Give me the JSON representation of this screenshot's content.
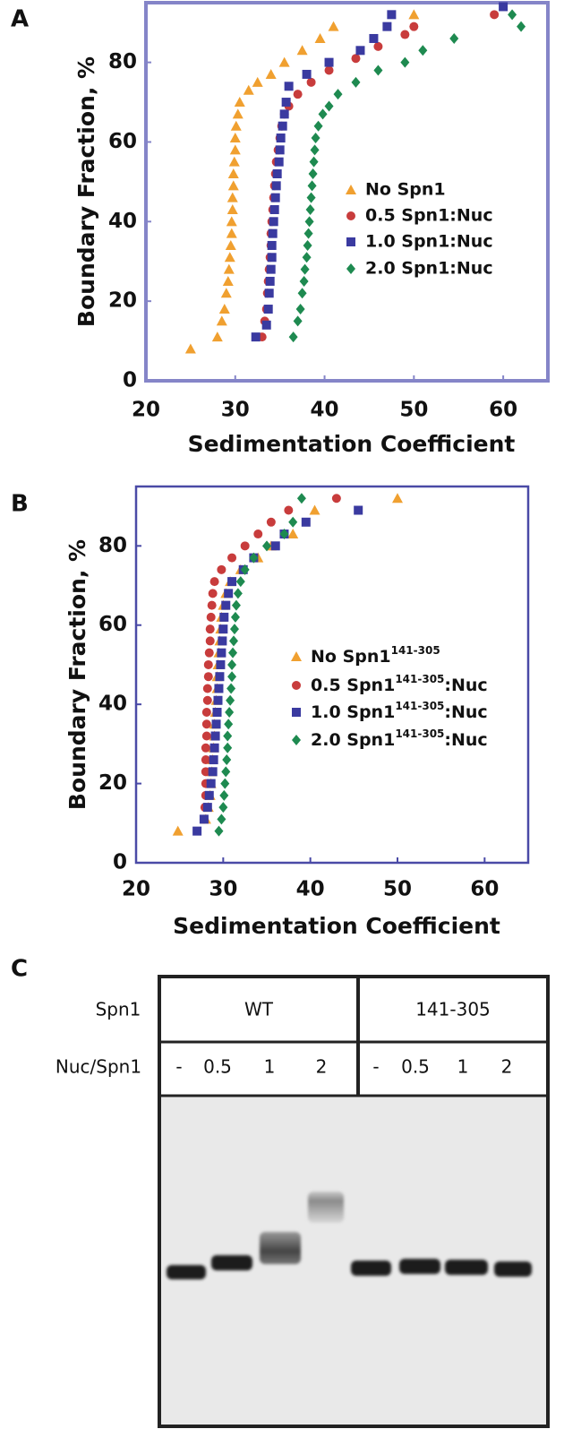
{
  "chart_data": [
    {
      "panel": "A",
      "type": "scatter",
      "xlabel": "Sedimentation Coefficient",
      "ylabel": "Boundary Fraction, %",
      "xlim": [
        20,
        65
      ],
      "ylim": [
        0,
        95
      ],
      "xticks": [
        20,
        30,
        40,
        50,
        60
      ],
      "yticks": [
        0,
        20,
        40,
        60,
        80
      ],
      "series": [
        {
          "name": "No Spn1",
          "color": "#f0a030",
          "marker": "triangle",
          "x": [
            25,
            28,
            28.5,
            28.8,
            29,
            29.2,
            29.3,
            29.4,
            29.5,
            29.6,
            29.6,
            29.7,
            29.7,
            29.8,
            29.8,
            29.9,
            30,
            30,
            30.1,
            30.3,
            30.5,
            31.5,
            32.5,
            34,
            35.5,
            37.5,
            39.5,
            41,
            50
          ],
          "values": [
            8,
            11,
            15,
            18,
            22,
            25,
            28,
            31,
            34,
            37,
            40,
            43,
            46,
            49,
            52,
            55,
            58,
            61,
            64,
            67,
            70,
            73,
            75,
            77,
            80,
            83,
            86,
            89,
            92
          ]
        },
        {
          "name": "0.5 Spn1:Nuc",
          "color": "#c83c3c",
          "marker": "circle",
          "x": [
            33,
            33.3,
            33.5,
            33.6,
            33.7,
            33.8,
            33.9,
            34,
            34,
            34.1,
            34.2,
            34.3,
            34.4,
            34.5,
            34.6,
            34.8,
            35,
            35.2,
            35.5,
            36,
            37,
            38.5,
            40.5,
            43.5,
            46,
            49,
            50,
            59
          ],
          "values": [
            11,
            15,
            18,
            22,
            25,
            28,
            31,
            34,
            37,
            40,
            43,
            46,
            49,
            52,
            55,
            58,
            61,
            64,
            67,
            69,
            72,
            75,
            78,
            81,
            84,
            87,
            89,
            92
          ]
        },
        {
          "name": "1.0 Spn1:Nuc",
          "color": "#3a3aa0",
          "marker": "square",
          "x": [
            32.3,
            33.5,
            33.7,
            33.8,
            33.9,
            34,
            34.1,
            34.1,
            34.2,
            34.3,
            34.4,
            34.5,
            34.6,
            34.7,
            34.9,
            35,
            35.1,
            35.3,
            35.5,
            35.7,
            36,
            38,
            40.5,
            44,
            45.5,
            47,
            47.5,
            60
          ],
          "values": [
            11,
            14,
            18,
            22,
            25,
            28,
            31,
            34,
            37,
            40,
            43,
            46,
            49,
            52,
            55,
            58,
            61,
            64,
            67,
            70,
            74,
            77,
            80,
            83,
            86,
            89,
            92,
            94
          ]
        },
        {
          "name": "2.0 Spn1:Nuc",
          "color": "#1e8a50",
          "marker": "diamond",
          "x": [
            36.5,
            37,
            37.3,
            37.5,
            37.7,
            37.8,
            38,
            38.1,
            38.2,
            38.3,
            38.4,
            38.5,
            38.6,
            38.7,
            38.8,
            38.9,
            39,
            39.3,
            39.8,
            40.5,
            41.5,
            43.5,
            46,
            49,
            51,
            54.5,
            61,
            62
          ],
          "values": [
            11,
            15,
            18,
            22,
            25,
            28,
            31,
            34,
            37,
            40,
            43,
            46,
            49,
            52,
            55,
            58,
            61,
            64,
            67,
            69,
            72,
            75,
            78,
            80,
            83,
            86,
            92,
            89
          ]
        }
      ]
    },
    {
      "panel": "B",
      "type": "scatter",
      "xlabel": "Sedimentation Coefficient",
      "ylabel": "Boundary Fraction, %",
      "xlim": [
        20,
        65
      ],
      "ylim": [
        0,
        95
      ],
      "xticks": [
        20,
        30,
        40,
        50,
        60
      ],
      "yticks": [
        0,
        20,
        40,
        60,
        80
      ],
      "series": [
        {
          "name": [
            "No Spn1",
            "141-305"
          ],
          "color": "#f0a030",
          "marker": "triangle",
          "x": [
            24.8,
            28,
            28.3,
            28.5,
            28.6,
            28.7,
            28.8,
            28.9,
            29,
            29,
            29.1,
            29.2,
            29.3,
            29.3,
            29.4,
            29.5,
            29.6,
            29.7,
            29.8,
            30,
            30.3,
            30.8,
            32,
            34,
            35.5,
            38,
            40.5,
            50
          ],
          "values": [
            8,
            11,
            14,
            17,
            20,
            23,
            26,
            29,
            32,
            35,
            38,
            41,
            44,
            47,
            50,
            53,
            56,
            59,
            62,
            65,
            68,
            71,
            74,
            77,
            80,
            83,
            89,
            92
          ]
        },
        {
          "name": [
            "0.5 Spn1",
            "141-305",
            ":Nuc"
          ],
          "color": "#c83c3c",
          "marker": "circle",
          "x": [
            27.8,
            27.9,
            28,
            28,
            28,
            28,
            28,
            28.1,
            28.1,
            28.1,
            28.2,
            28.2,
            28.3,
            28.3,
            28.4,
            28.5,
            28.5,
            28.6,
            28.7,
            28.8,
            29,
            29.8,
            31,
            32.5,
            34,
            35.5,
            37.5,
            43
          ],
          "values": [
            11,
            14,
            17,
            20,
            23,
            26,
            29,
            32,
            35,
            38,
            41,
            44,
            47,
            50,
            53,
            56,
            59,
            62,
            65,
            68,
            71,
            74,
            77,
            80,
            83,
            86,
            89,
            92
          ]
        },
        {
          "name": [
            "1.0 Spn1",
            "141-305",
            ":Nuc"
          ],
          "color": "#3a3aa0",
          "marker": "square",
          "x": [
            27,
            27.8,
            28.2,
            28.4,
            28.6,
            28.8,
            28.9,
            29,
            29.1,
            29.2,
            29.3,
            29.4,
            29.5,
            29.6,
            29.7,
            29.8,
            29.9,
            30,
            30.1,
            30.3,
            30.6,
            31,
            32.3,
            33.5,
            36,
            37,
            39.5,
            45.5
          ],
          "values": [
            8,
            11,
            14,
            17,
            20,
            23,
            26,
            29,
            32,
            35,
            38,
            41,
            44,
            47,
            50,
            53,
            56,
            59,
            62,
            65,
            68,
            71,
            74,
            77,
            80,
            83,
            86,
            89
          ]
        },
        {
          "name": [
            "2.0 Spn1",
            "141-305",
            ":Nuc"
          ],
          "color": "#1e8a50",
          "marker": "diamond",
          "x": [
            29.5,
            29.8,
            30,
            30.1,
            30.2,
            30.3,
            30.4,
            30.5,
            30.5,
            30.6,
            30.7,
            30.8,
            30.9,
            31,
            31,
            31.1,
            31.2,
            31.3,
            31.4,
            31.5,
            31.7,
            32,
            32.5,
            33.5,
            35,
            37,
            38,
            39
          ],
          "values": [
            8,
            11,
            14,
            17,
            20,
            23,
            26,
            29,
            32,
            35,
            38,
            41,
            44,
            47,
            50,
            53,
            56,
            59,
            62,
            65,
            68,
            71,
            74,
            77,
            80,
            83,
            86,
            92
          ]
        }
      ]
    }
  ],
  "gel": {
    "panel": "C",
    "rows": [
      {
        "label": "Spn1",
        "groups": [
          "WT",
          "141-305"
        ]
      },
      {
        "label": "Nuc/Spn1",
        "lanes": [
          "-",
          "0.5",
          "1",
          "2",
          "-",
          "0.5",
          "1",
          "2"
        ]
      }
    ]
  }
}
